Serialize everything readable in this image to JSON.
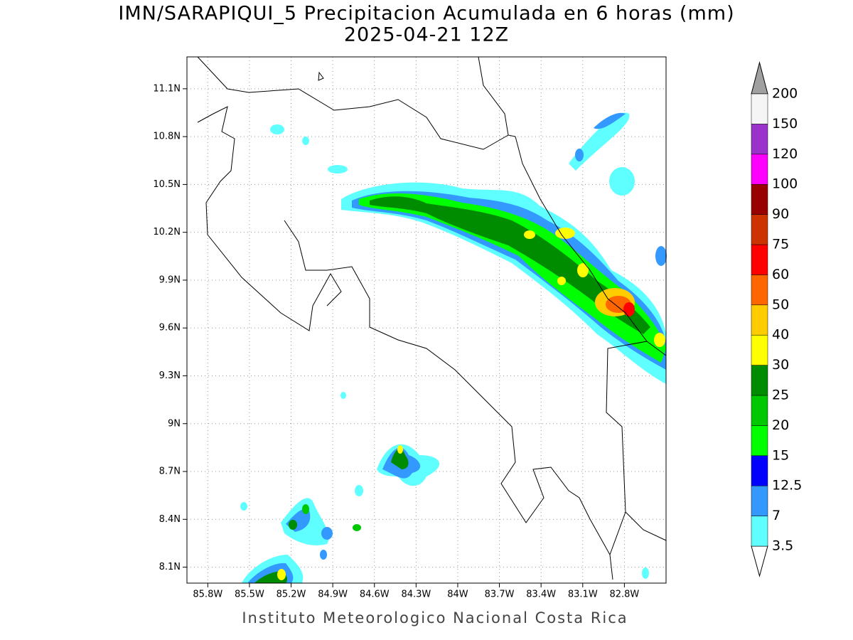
{
  "title": "IMN/SARAPIQUI_5 Precipitacion Acumulada en 6 horas (mm)",
  "subtitle": "2025-04-21 12Z",
  "map": {
    "xlim": [
      -85.95,
      -82.5
    ],
    "ylim": [
      8.0,
      11.3
    ],
    "grid": true,
    "xticks": [
      {
        "value": -85.8,
        "label": "85.8W"
      },
      {
        "value": -85.5,
        "label": "85.5W"
      },
      {
        "value": -85.2,
        "label": "85.2W"
      },
      {
        "value": -84.9,
        "label": "84.9W"
      },
      {
        "value": -84.6,
        "label": "84.6W"
      },
      {
        "value": -84.3,
        "label": "84.3W"
      },
      {
        "value": -84,
        "label": "84W"
      },
      {
        "value": -83.7,
        "label": "83.7W"
      },
      {
        "value": -83.4,
        "label": "83.4W"
      },
      {
        "value": -83.1,
        "label": "83.1W"
      },
      {
        "value": -82.8,
        "label": "82.8W"
      }
    ],
    "yticks": [
      {
        "value": 8.1,
        "label": "8.1N"
      },
      {
        "value": 8.4,
        "label": "8.4N"
      },
      {
        "value": 8.7,
        "label": "8.7N"
      },
      {
        "value": 9,
        "label": "9N"
      },
      {
        "value": 9.3,
        "label": "9.3N"
      },
      {
        "value": 9.6,
        "label": "9.6N"
      },
      {
        "value": 9.9,
        "label": "9.9N"
      },
      {
        "value": 10.2,
        "label": "10.2N"
      },
      {
        "value": 10.5,
        "label": "10.5N"
      },
      {
        "value": 10.8,
        "label": "10.8N"
      },
      {
        "value": 11.1,
        "label": "11.1N"
      }
    ]
  },
  "colorbar": {
    "levels": [
      3.5,
      7,
      12.5,
      15,
      20,
      25,
      30,
      40,
      50,
      60,
      75,
      90,
      100,
      120,
      150,
      200
    ],
    "colors": [
      "#60ffff",
      "#3399ff",
      "#0000ff",
      "#00ff00",
      "#00c800",
      "#008c00",
      "#ffff00",
      "#ffcc00",
      "#ff6600",
      "#ff0000",
      "#cc3300",
      "#990000",
      "#ff00ff",
      "#9933cc",
      "#f5f5f5"
    ],
    "under_color": "#ffffff",
    "over_color": "#a0a0a0"
  },
  "footer": "Instituto Meteorologico Nacional Costa Rica"
}
